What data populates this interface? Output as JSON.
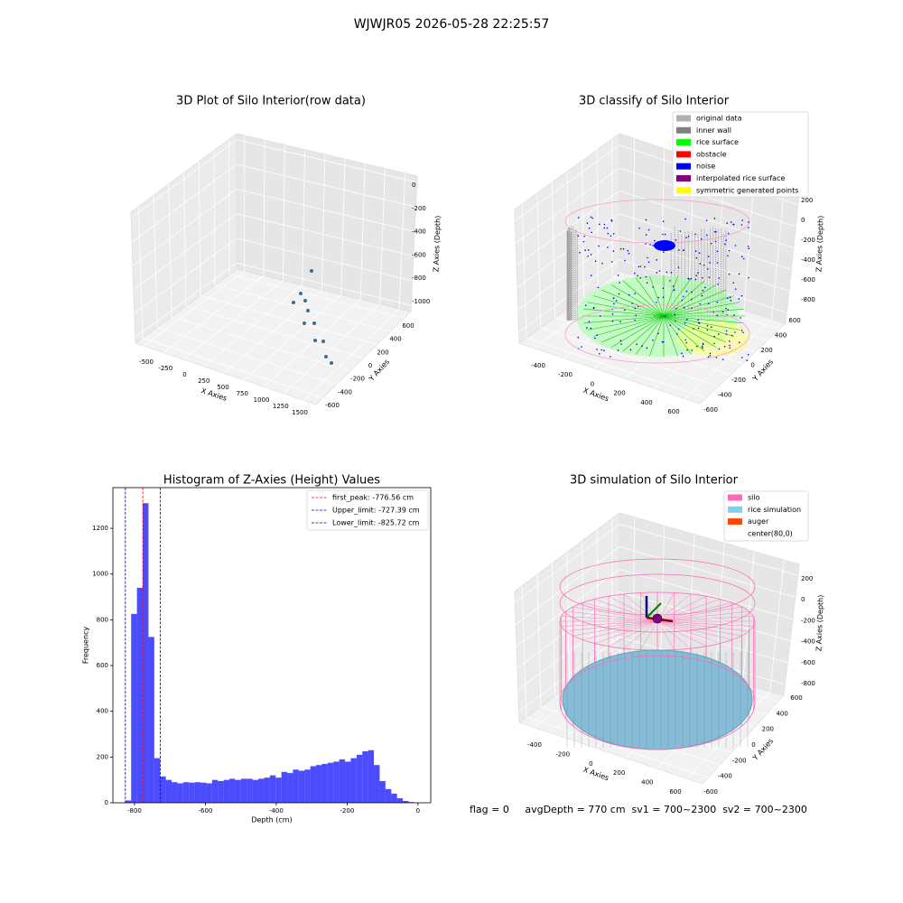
{
  "title": "WJWJR05 2026-05-28 22:25:57",
  "footer": "flag = 0     avgDepth = 770 cm  sv1 = 700~2300  sv2 = 700~2300",
  "chart_data": [
    {
      "type": "scatter3d",
      "title": "3D Plot of Silo Interior(row data)",
      "xlabel": "X Axies",
      "ylabel": "Y Axies",
      "zlabel": "Z Axies (Depth)",
      "xlim": [
        -600,
        1650
      ],
      "xticks": [
        -500,
        -250,
        0,
        250,
        500,
        750,
        1000,
        1250,
        1500
      ],
      "ylim": [
        -700,
        700
      ],
      "yticks": [
        -600,
        -400,
        -200,
        0,
        200,
        400,
        600
      ],
      "zlim": [
        -1050,
        50
      ],
      "zticks": [
        0,
        -200,
        -400,
        -600,
        -800,
        -1000
      ],
      "grid": true
    },
    {
      "type": "scatter3d",
      "title": "3D classify of Silo Interior",
      "xlabel": "X Axies",
      "ylabel": "Y Axies",
      "zlabel": "Z Axies (Depth)",
      "xlim": [
        -500,
        700
      ],
      "xticks": [
        -400,
        -200,
        0,
        200,
        400,
        600
      ],
      "ylim": [
        -700,
        700
      ],
      "yticks": [
        -600,
        -400,
        -200,
        0,
        200,
        400,
        600
      ],
      "zlim": [
        -900,
        300
      ],
      "zticks": [
        200,
        0,
        -200,
        -400,
        -600,
        -800
      ],
      "grid": true,
      "legend": "upper right",
      "series": [
        {
          "name": "original data",
          "color": "#b0b0b0"
        },
        {
          "name": "inner wall",
          "color": "#808080"
        },
        {
          "name": "rice surface",
          "color": "#00ff00"
        },
        {
          "name": "obstacle",
          "color": "#ff0000"
        },
        {
          "name": "noise",
          "color": "#0000ff"
        },
        {
          "name": "interpolated rice surface",
          "color": "#800080"
        },
        {
          "name": "symmetric generated points",
          "color": "#ffff00"
        }
      ]
    },
    {
      "type": "histogram",
      "title": "Histogram of Z-Axies (Height) Values",
      "xlabel": "Depth (cm)",
      "ylabel": "Frequency",
      "color": "#0000ff",
      "bins": [
        -825.72,
        -809.41,
        -793.1,
        -776.79,
        -760.48,
        -744.17,
        -727.86,
        -711.55,
        -695.24,
        -678.93,
        -662.62,
        -646.31,
        -630.0,
        -613.69,
        -597.38,
        -581.07,
        -564.76,
        -548.45,
        -532.14,
        -515.83,
        -499.52,
        -483.21,
        -466.9,
        -450.59,
        -434.28,
        -417.97,
        -401.66,
        -385.35,
        -369.04,
        -352.73,
        -336.42,
        -320.11,
        -303.8,
        -287.49,
        -271.18,
        -254.87,
        -238.56,
        -222.25,
        -205.94,
        -189.63,
        -173.32,
        -157.01,
        -140.7,
        -124.39,
        -108.08,
        -91.77,
        -75.46,
        -59.15,
        -42.84,
        -26.53,
        -10.22
      ],
      "values": [
        10,
        826,
        940,
        1310,
        725,
        195,
        115,
        100,
        90,
        85,
        90,
        88,
        90,
        88,
        85,
        100,
        95,
        100,
        105,
        100,
        105,
        105,
        100,
        105,
        110,
        120,
        110,
        135,
        130,
        145,
        140,
        145,
        160,
        165,
        170,
        175,
        180,
        190,
        180,
        195,
        210,
        225,
        230,
        165,
        95,
        60,
        40,
        20,
        8,
        3,
        0
      ],
      "xlim": [
        -861,
        36
      ],
      "xticks": [
        -800,
        -600,
        -400,
        -200,
        0
      ],
      "ylim": [
        0,
        1378
      ],
      "yticks": [
        0,
        200,
        400,
        600,
        800,
        1000,
        1200
      ],
      "legend": "upper right",
      "vlines": [
        {
          "value": -776.56,
          "label": "first_peak: -776.56 cm",
          "color": "#ff0000"
        },
        {
          "value": -727.39,
          "label": "Upper_limit: -727.39 cm",
          "color": "#0000cc"
        },
        {
          "value": -825.72,
          "label": "Lower_limit: -825.72 cm",
          "color": "#00008b"
        }
      ]
    },
    {
      "type": "surface3d",
      "title": "3D simulation of Silo Interior",
      "xlabel": "X Axies",
      "ylabel": "Y Axies",
      "zlabel": "Z Axies (Depth)",
      "xlim": [
        -500,
        700
      ],
      "xticks": [
        -400,
        -200,
        0,
        200,
        400,
        600
      ],
      "ylim": [
        -700,
        700
      ],
      "yticks": [
        -600,
        -400,
        -200,
        0,
        200,
        400,
        600
      ],
      "zlim": [
        -900,
        300
      ],
      "zticks": [
        200,
        0,
        -200,
        -400,
        -600,
        -800
      ],
      "grid": true,
      "legend": "upper right",
      "series": [
        {
          "name": "silo",
          "color": "#ff69b4"
        },
        {
          "name": "rice simulation",
          "color": "#87ceeb"
        },
        {
          "name": "auger",
          "color": "#ff4500"
        },
        {
          "name": "center(80,0)",
          "color": "#ffffff"
        }
      ]
    }
  ]
}
